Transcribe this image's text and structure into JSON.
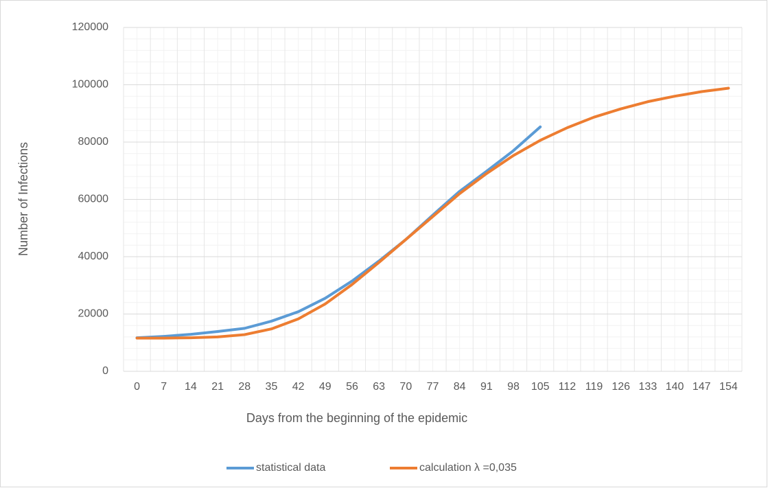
{
  "chart_data": {
    "type": "line",
    "xlabel": "Days from the beginning of the epidemic",
    "ylabel": "Number of Infections",
    "categories": [
      0,
      7,
      14,
      21,
      28,
      35,
      42,
      49,
      56,
      63,
      70,
      77,
      84,
      91,
      98,
      105,
      112,
      119,
      126,
      133,
      140,
      147,
      154
    ],
    "series": [
      {
        "name": "statistical data",
        "color": "#5b9bd5",
        "values": [
          11700,
          12200,
          12900,
          13900,
          15000,
          17500,
          20800,
          25500,
          31500,
          38500,
          46000,
          54500,
          62800,
          69800,
          77000,
          85300,
          null,
          null,
          null,
          null,
          null,
          null,
          null
        ]
      },
      {
        "name": "calculation λ =0,035",
        "color": "#ed7d31",
        "values": [
          11600,
          11600,
          11700,
          12000,
          12800,
          14800,
          18300,
          23500,
          30300,
          38000,
          46000,
          54000,
          62000,
          69000,
          75300,
          80600,
          85000,
          88700,
          91600,
          94100,
          96000,
          97600,
          98800
        ]
      }
    ],
    "ylim": [
      0,
      120000
    ],
    "yticks": [
      0,
      20000,
      40000,
      60000,
      80000,
      100000,
      120000
    ],
    "grid": true,
    "legend": "bottom"
  }
}
